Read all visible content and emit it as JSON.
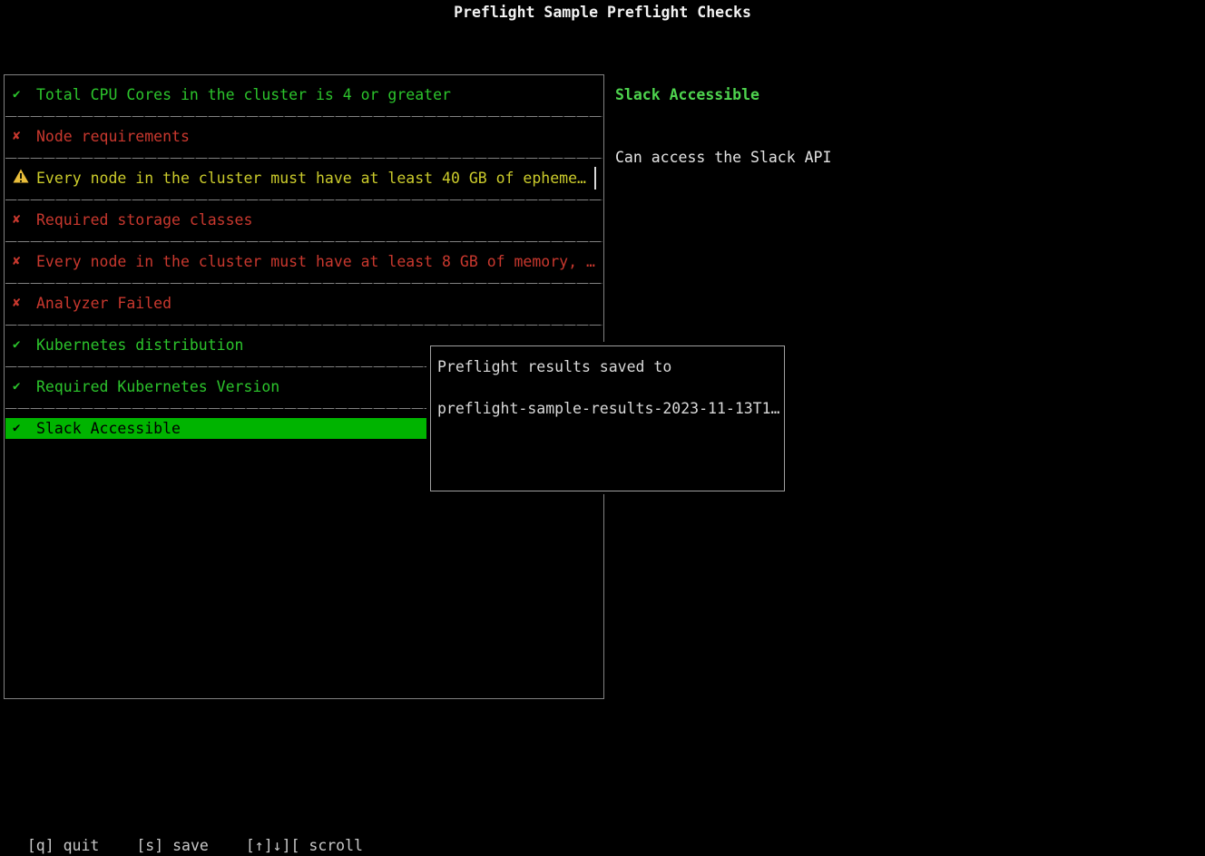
{
  "title": "Preflight Sample Preflight Checks",
  "colors": {
    "background": "#000000",
    "title": "#f2f2f2",
    "text": "#e3e3e3",
    "muted": "#c9c9c9",
    "pass": "#2cc42c",
    "fail": "#c9382e",
    "warn": "#cbcb2b",
    "warn_triangle": "#e9bd3a",
    "selected_bg": "#00b400",
    "selected_fg": "#000000",
    "detail_title": "#4ed34e",
    "border": "#828282",
    "modal_border": "#a0a0a0"
  },
  "checks": {
    "icons": {
      "pass": "✔",
      "fail": "✘",
      "warn": "⚠"
    },
    "items": [
      {
        "label": "Total CPU Cores in the cluster is 4 or greater",
        "status": "pass",
        "selected": false
      },
      {
        "label": "Node requirements",
        "status": "fail",
        "selected": false
      },
      {
        "label": "Every node in the cluster must have at least 40 GB of epheme…",
        "status": "warn",
        "selected": false,
        "cursor": true
      },
      {
        "label": "Required storage classes",
        "status": "fail",
        "selected": false
      },
      {
        "label": "Every node in the cluster must have at least 8 GB of memory, …",
        "status": "fail",
        "selected": false
      },
      {
        "label": "Analyzer Failed",
        "status": "fail",
        "selected": false
      },
      {
        "label": "Kubernetes distribution",
        "status": "pass",
        "selected": false
      },
      {
        "label": "Required Kubernetes Version",
        "status": "pass",
        "selected": false
      },
      {
        "label": "Slack Accessible",
        "status": "pass",
        "selected": true
      }
    ]
  },
  "detail": {
    "title": "Slack Accessible",
    "message": "Can access the Slack API"
  },
  "modal": {
    "line1": "Preflight results saved to",
    "line2": "preflight-sample-results-2023-11-13T1…"
  },
  "footer": {
    "quit": "[q] quit",
    "save": "[s] save",
    "scroll": "[↑]↓][ scroll"
  }
}
